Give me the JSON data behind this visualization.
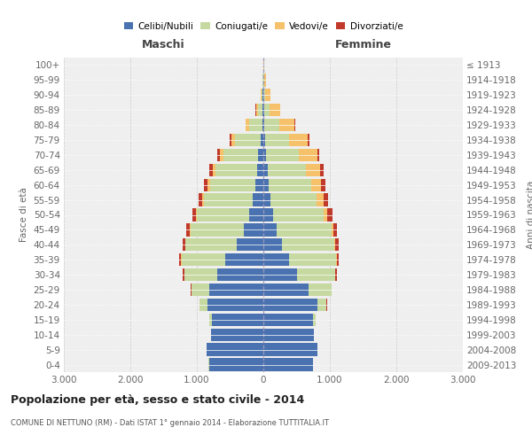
{
  "age_groups": [
    "0-4",
    "5-9",
    "10-14",
    "15-19",
    "20-24",
    "25-29",
    "30-34",
    "35-39",
    "40-44",
    "45-49",
    "50-54",
    "55-59",
    "60-64",
    "65-69",
    "70-74",
    "75-79",
    "80-84",
    "85-89",
    "90-94",
    "95-99",
    "100+"
  ],
  "birth_years": [
    "2009-2013",
    "2004-2008",
    "1999-2003",
    "1994-1998",
    "1989-1993",
    "1984-1988",
    "1979-1983",
    "1974-1978",
    "1969-1973",
    "1964-1968",
    "1959-1963",
    "1954-1958",
    "1949-1953",
    "1944-1948",
    "1939-1943",
    "1934-1938",
    "1929-1933",
    "1924-1928",
    "1919-1923",
    "1914-1918",
    "≤ 1913"
  ],
  "maschi": {
    "celibi": [
      820,
      850,
      790,
      780,
      840,
      810,
      700,
      570,
      400,
      290,
      210,
      155,
      120,
      95,
      75,
      45,
      20,
      10,
      8,
      4,
      2
    ],
    "coniugati": [
      2,
      2,
      3,
      30,
      120,
      270,
      490,
      660,
      770,
      810,
      790,
      740,
      680,
      620,
      530,
      380,
      200,
      75,
      20,
      5,
      2
    ],
    "vedovi": [
      0,
      0,
      0,
      1,
      2,
      2,
      3,
      4,
      5,
      10,
      15,
      25,
      40,
      50,
      55,
      60,
      45,
      25,
      8,
      4,
      0
    ],
    "divorziati": [
      0,
      0,
      0,
      1,
      4,
      10,
      22,
      38,
      45,
      50,
      55,
      60,
      58,
      48,
      32,
      18,
      8,
      4,
      2,
      0,
      0
    ]
  },
  "femmine": {
    "nubili": [
      750,
      810,
      760,
      750,
      810,
      680,
      510,
      380,
      280,
      200,
      145,
      100,
      82,
      62,
      45,
      30,
      15,
      8,
      6,
      3,
      2
    ],
    "coniugate": [
      2,
      2,
      3,
      35,
      140,
      340,
      570,
      710,
      790,
      820,
      760,
      700,
      640,
      580,
      490,
      350,
      220,
      90,
      25,
      5,
      2
    ],
    "vedove": [
      0,
      0,
      0,
      1,
      2,
      3,
      5,
      10,
      15,
      28,
      58,
      100,
      145,
      215,
      275,
      290,
      235,
      155,
      75,
      28,
      5
    ],
    "divorziate": [
      0,
      0,
      0,
      1,
      3,
      8,
      18,
      30,
      48,
      62,
      72,
      76,
      68,
      52,
      36,
      22,
      12,
      5,
      2,
      0,
      0
    ]
  },
  "colors": {
    "celibi": "#4a72b0",
    "coniugati": "#c6d9a0",
    "vedovi": "#f5c26b",
    "divorziati": "#c0392b"
  },
  "xlim": 3000,
  "xticks": [
    -3000,
    -2000,
    -1000,
    0,
    1000,
    2000,
    3000
  ],
  "xticklabels": [
    "3.000",
    "2.000",
    "1.000",
    "0",
    "1.000",
    "2.000",
    "3.000"
  ],
  "title": "Popolazione per età, sesso e stato civile - 2014",
  "subtitle": "COMUNE DI NETTUNO (RM) - Dati ISTAT 1° gennaio 2014 - Elaborazione TUTTITALIA.IT",
  "ylabel_left": "Fasce di età",
  "ylabel_right": "Anni di nascita",
  "xlabel_left": "Maschi",
  "xlabel_right": "Femmine",
  "bg_color": "#efefef",
  "grid_color": "#cccccc",
  "legend_labels": [
    "Celibi/Nubili",
    "Coniugati/e",
    "Vedovi/e",
    "Divorziati/e"
  ]
}
